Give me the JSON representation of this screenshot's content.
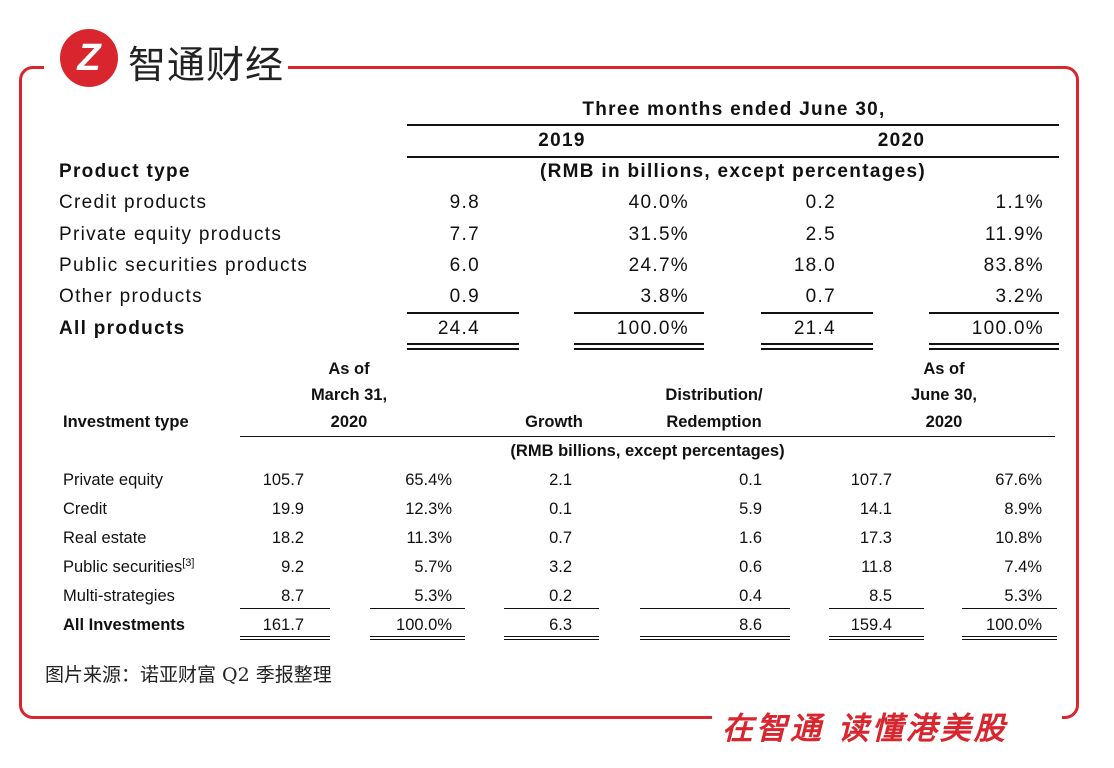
{
  "brand": {
    "logo_mark": "Z",
    "logo_text": "智通财经",
    "slogan": "在智通  读懂港美股",
    "accent_color": "#d9262e"
  },
  "source": "图片来源：诺亚财富 Q2 季报整理",
  "table1": {
    "header_period": "Three months ended June 30,",
    "year_2019": "2019",
    "year_2020": "2020",
    "row_label_header": "Product type",
    "unit_note": "(RMB in billions, except percentages)",
    "rows": [
      {
        "label": "Credit products",
        "v2019": "9.8",
        "p2019": "40.0%",
        "v2020": "0.2",
        "p2020": "1.1%"
      },
      {
        "label": "Private equity products",
        "v2019": "7.7",
        "p2019": "31.5%",
        "v2020": "2.5",
        "p2020": "11.9%"
      },
      {
        "label": "Public securities  products",
        "v2019": "6.0",
        "p2019": "24.7%",
        "v2020": "18.0",
        "p2020": "83.8%"
      },
      {
        "label": "Other products",
        "v2019": "0.9",
        "p2019": "3.8%",
        "v2020": "0.7",
        "p2020": "3.2%"
      }
    ],
    "total": {
      "label": "All products",
      "v2019": "24.4",
      "p2019": "100.0%",
      "v2020": "21.4",
      "p2020": "100.0%"
    }
  },
  "table2": {
    "row_label_header": "Investment type",
    "col_march": [
      "As of",
      "March 31,",
      "2020"
    ],
    "col_growth": "Growth",
    "col_distribution": [
      "Distribution/",
      "Redemption"
    ],
    "col_june": [
      "As of",
      "June 30,",
      "2020"
    ],
    "unit_note": "(RMB billions, except percentages)",
    "rows": [
      {
        "label": "Private equity",
        "sup": "",
        "mar": "105.7",
        "mar_pct": "65.4%",
        "growth": "2.1",
        "dist": "0.1",
        "jun": "107.7",
        "jun_pct": "67.6%"
      },
      {
        "label": "Credit",
        "sup": "",
        "mar": "19.9",
        "mar_pct": "12.3%",
        "growth": "0.1",
        "dist": "5.9",
        "jun": "14.1",
        "jun_pct": "8.9%"
      },
      {
        "label": "Real estate",
        "sup": "",
        "mar": "18.2",
        "mar_pct": "11.3%",
        "growth": "0.7",
        "dist": "1.6",
        "jun": "17.3",
        "jun_pct": "10.8%"
      },
      {
        "label": "Public securities",
        "sup": "[3]",
        "mar": "9.2",
        "mar_pct": "5.7%",
        "growth": "3.2",
        "dist": "0.6",
        "jun": "11.8",
        "jun_pct": "7.4%"
      },
      {
        "label": "Multi-strategies",
        "sup": "",
        "mar": "8.7",
        "mar_pct": "5.3%",
        "growth": "0.2",
        "dist": "0.4",
        "jun": "8.5",
        "jun_pct": "5.3%"
      }
    ],
    "total": {
      "label": "All Investments",
      "mar": "161.7",
      "mar_pct": "100.0%",
      "growth": "6.3",
      "dist": "8.6",
      "jun": "159.4",
      "jun_pct": "100.0%"
    }
  }
}
